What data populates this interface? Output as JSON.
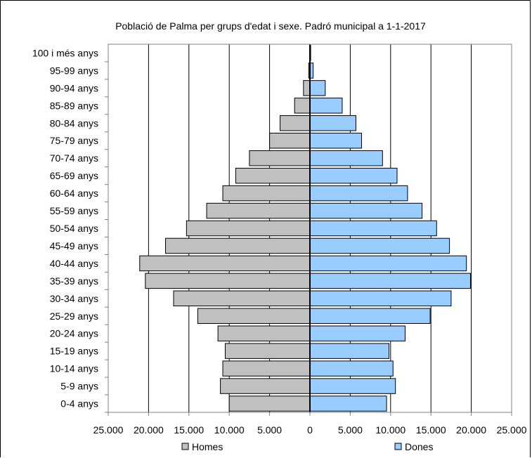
{
  "chart_data": {
    "type": "bar",
    "orientation": "horizontal",
    "subtype": "population-pyramid",
    "title": "Població de Palma per grups d'edat i sexe. Padró municipal a 1-1-2017",
    "categories": [
      "0-4 anys",
      "5-9 anys",
      "10-14 anys",
      "15-19 anys",
      "20-24 anys",
      "25-29 anys",
      "30-34 anys",
      "35-39 anys",
      "40-44 anys",
      "45-49 anys",
      "50-54 anys",
      "55-59 anys",
      "60-64 anys",
      "65-69 anys",
      "70-74 anys",
      "75-79 anys",
      "80-84 anys",
      "85-89 anys",
      "90-94 anys",
      "95-99 anys",
      "100 i més anys"
    ],
    "series": [
      {
        "name": "Homes",
        "color": "#c0c0c0",
        "side": "left",
        "values": [
          10000,
          11100,
          10800,
          10500,
          11400,
          13900,
          16900,
          20400,
          21100,
          17900,
          15300,
          12800,
          10800,
          9200,
          7500,
          5000,
          3700,
          1900,
          800,
          150,
          30
        ]
      },
      {
        "name": "Dones",
        "color": "#99ccff",
        "side": "right",
        "values": [
          9500,
          10600,
          10300,
          9800,
          11800,
          14900,
          17500,
          19900,
          19400,
          17300,
          15700,
          13900,
          12100,
          10800,
          9000,
          6400,
          5700,
          4000,
          1900,
          400,
          90
        ]
      }
    ],
    "xlim": [
      -25000,
      25000
    ],
    "x_ticks": [
      {
        "value": -25000,
        "label": "25.000"
      },
      {
        "value": -20000,
        "label": "20.000"
      },
      {
        "value": -15000,
        "label": "15.000"
      },
      {
        "value": -10000,
        "label": "10.000"
      },
      {
        "value": -5000,
        "label": "5.000"
      },
      {
        "value": 0,
        "label": "0"
      },
      {
        "value": 5000,
        "label": "5.000"
      },
      {
        "value": 10000,
        "label": "10.000"
      },
      {
        "value": 15000,
        "label": "15.000"
      },
      {
        "value": 20000,
        "label": "20.000"
      },
      {
        "value": 25000,
        "label": "25.000"
      }
    ],
    "grid": true,
    "legend_position": "bottom"
  }
}
